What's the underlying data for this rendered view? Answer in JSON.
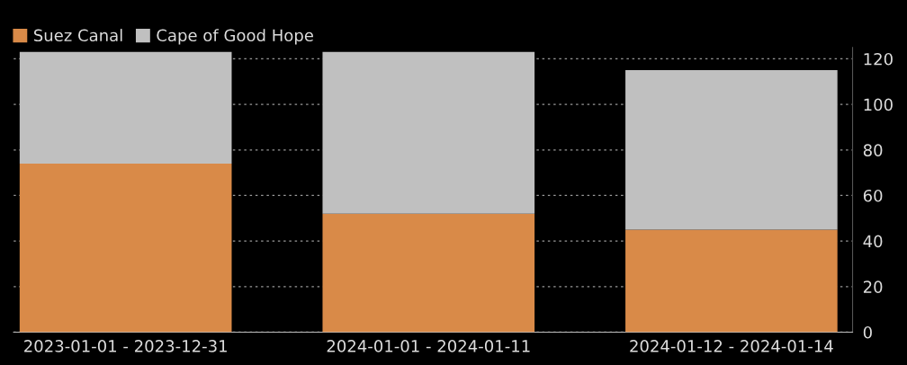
{
  "chart_data": {
    "type": "bar",
    "stacked": true,
    "categories": [
      "2023-01-01 - 2023-12-31",
      "2024-01-01 - 2024-01-11",
      "2024-01-12 - 2024-01-14"
    ],
    "series": [
      {
        "name": "Suez Canal",
        "color": "#d98a48",
        "values": [
          74,
          52,
          45
        ]
      },
      {
        "name": "Cape of Good Hope",
        "color": "#c0c0c0",
        "values": [
          49,
          71,
          70
        ]
      }
    ],
    "ylim": [
      0,
      125
    ],
    "yticks": [
      0,
      20,
      40,
      60,
      80,
      100,
      120
    ],
    "grid": "y",
    "legend": "top left"
  }
}
